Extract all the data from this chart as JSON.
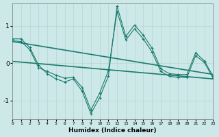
{
  "xlabel": "Humidex (Indice chaleur)",
  "background_color": "#cce8e8",
  "line_color": "#1a7a6e",
  "grid_color": "#b8d4d0",
  "xlim": [
    0,
    23
  ],
  "ylim": [
    -1.5,
    1.6
  ],
  "x_ticks": [
    0,
    1,
    2,
    3,
    4,
    5,
    6,
    7,
    8,
    9,
    10,
    11,
    12,
    13,
    14,
    15,
    16,
    17,
    18,
    19,
    20,
    21,
    22,
    23
  ],
  "y_ticks": [
    -1,
    0,
    1
  ],
  "series1_x": [
    0,
    1,
    2,
    3,
    4,
    5,
    6,
    7,
    8,
    9,
    10,
    11,
    12,
    13,
    14,
    15,
    16,
    17,
    18,
    19,
    20,
    21,
    22,
    23
  ],
  "series1_y": [
    0.65,
    0.65,
    0.42,
    -0.05,
    -0.28,
    -0.42,
    -0.5,
    -0.42,
    -0.75,
    -1.35,
    -0.92,
    -0.35,
    1.52,
    0.72,
    1.02,
    0.75,
    0.4,
    -0.15,
    -0.28,
    -0.3,
    -0.3,
    0.28,
    0.06,
    -0.35
  ],
  "series2_x": [
    0,
    1,
    2,
    3,
    4,
    5,
    6,
    7,
    8,
    9,
    10,
    11,
    12,
    13,
    14,
    15,
    16,
    17,
    18,
    19,
    20,
    21,
    22,
    23
  ],
  "series2_y": [
    0.6,
    0.58,
    0.36,
    -0.12,
    -0.22,
    -0.32,
    -0.4,
    -0.38,
    -0.65,
    -1.25,
    -0.8,
    -0.2,
    1.38,
    0.62,
    0.92,
    0.65,
    0.3,
    -0.22,
    -0.35,
    -0.38,
    -0.38,
    0.2,
    0.02,
    -0.4
  ],
  "trend1_x": [
    0,
    23
  ],
  "trend1_y": [
    0.58,
    -0.3
  ],
  "trend2_x": [
    0,
    23
  ],
  "trend2_y": [
    0.05,
    -0.42
  ]
}
